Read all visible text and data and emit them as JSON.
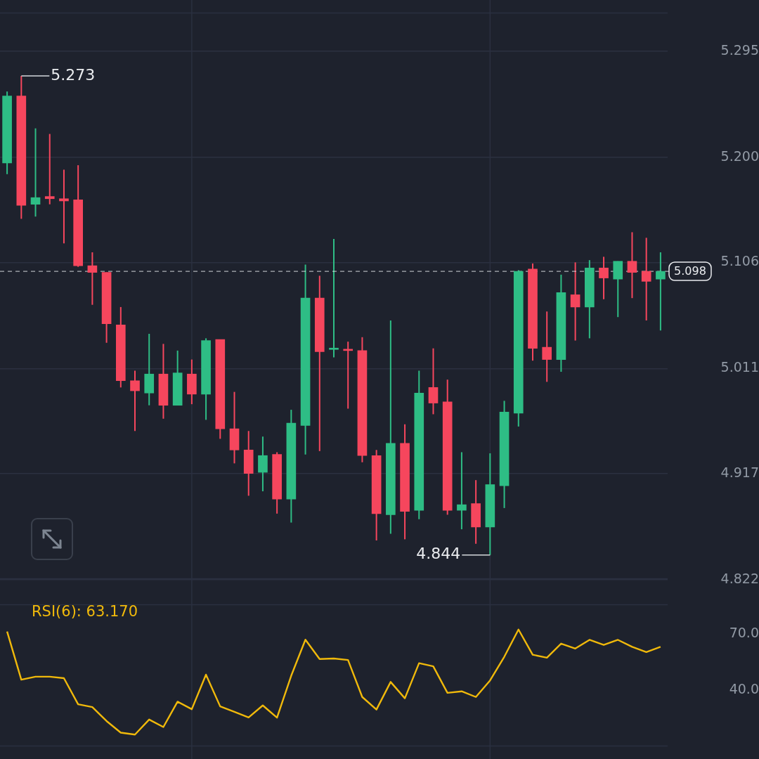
{
  "chart_data": [
    {
      "type": "candlestick",
      "categories": [
        null,
        null,
        null,
        null,
        null,
        null,
        null,
        null,
        null,
        null,
        null,
        null,
        null,
        null,
        null,
        null,
        null,
        null,
        null,
        null,
        null,
        null,
        null,
        null,
        null,
        null,
        null,
        null,
        null,
        null,
        null,
        null,
        null,
        null,
        null,
        null,
        null,
        null,
        null,
        null,
        null,
        null,
        null,
        null,
        null,
        null,
        null
      ],
      "ohlc": [
        [
          5.195,
          5.259,
          5.185,
          5.255
        ],
        [
          5.255,
          5.273,
          5.145,
          5.157
        ],
        [
          5.158,
          5.226,
          5.147,
          5.164
        ],
        [
          5.165,
          5.221,
          5.158,
          5.163
        ],
        [
          5.163,
          5.189,
          5.123,
          5.161
        ],
        [
          5.162,
          5.193,
          5.102,
          5.103
        ],
        [
          5.103,
          5.115,
          5.068,
          5.097
        ],
        [
          5.097,
          5.097,
          5.034,
          5.051
        ],
        [
          5.05,
          5.066,
          4.994,
          5.0
        ],
        [
          5.0,
          5.009,
          4.955,
          4.991
        ],
        [
          4.989,
          5.042,
          4.978,
          5.006
        ],
        [
          5.006,
          5.033,
          4.966,
          4.978
        ],
        [
          4.978,
          5.027,
          4.978,
          5.007
        ],
        [
          5.006,
          5.019,
          4.979,
          4.988
        ],
        [
          4.988,
          5.038,
          4.965,
          5.036
        ],
        [
          5.037,
          5.037,
          4.948,
          4.957
        ],
        [
          4.957,
          4.99,
          4.926,
          4.938
        ],
        [
          4.938,
          4.955,
          4.897,
          4.917
        ],
        [
          4.918,
          4.95,
          4.901,
          4.933
        ],
        [
          4.934,
          4.936,
          4.881,
          4.894
        ],
        [
          4.894,
          4.974,
          4.873,
          4.962
        ],
        [
          4.96,
          5.104,
          4.934,
          5.074
        ],
        [
          5.074,
          5.094,
          4.937,
          5.026
        ],
        [
          5.028,
          5.127,
          5.021,
          5.029
        ],
        [
          5.028,
          5.035,
          4.975,
          5.027
        ],
        [
          5.027,
          5.039,
          4.927,
          4.933
        ],
        [
          4.933,
          4.938,
          4.857,
          4.881
        ],
        [
          4.88,
          5.054,
          4.863,
          4.944
        ],
        [
          4.944,
          4.961,
          4.858,
          4.883
        ],
        [
          4.884,
          5.009,
          4.876,
          4.989
        ],
        [
          4.994,
          5.029,
          4.97,
          4.98
        ],
        [
          4.981,
          5.001,
          4.88,
          4.884
        ],
        [
          4.884,
          4.936,
          4.867,
          4.889
        ],
        [
          4.89,
          4.911,
          4.854,
          4.869
        ],
        [
          4.869,
          4.935,
          4.844,
          4.907
        ],
        [
          4.906,
          4.982,
          4.886,
          4.972
        ],
        [
          4.971,
          5.099,
          4.959,
          5.098
        ],
        [
          5.1,
          5.105,
          5.018,
          5.029
        ],
        [
          5.03,
          5.062,
          4.999,
          5.019
        ],
        [
          5.019,
          5.095,
          5.008,
          5.079
        ],
        [
          5.077,
          5.106,
          5.036,
          5.066
        ],
        [
          5.066,
          5.108,
          5.038,
          5.101
        ],
        [
          5.101,
          5.111,
          5.073,
          5.092
        ],
        [
          5.091,
          5.107,
          5.057,
          5.107
        ],
        [
          5.107,
          5.133,
          5.074,
          5.097
        ],
        [
          5.098,
          5.128,
          5.054,
          5.089
        ],
        [
          5.091,
          5.115,
          5.045,
          5.098
        ]
      ],
      "colors": [
        "#2ebd85",
        "#f6465d",
        "#2ebd85",
        "#f6465d",
        "#f6465d",
        "#f6465d",
        "#f6465d",
        "#f6465d",
        "#f6465d",
        "#f6465d",
        "#2ebd85",
        "#f6465d",
        "#2ebd85",
        "#f6465d",
        "#2ebd85",
        "#f6465d",
        "#f6465d",
        "#f6465d",
        "#2ebd85",
        "#f6465d",
        "#2ebd85",
        "#2ebd85",
        "#f6465d",
        "#2ebd85",
        "#f6465d",
        "#f6465d",
        "#f6465d",
        "#2ebd85",
        "#f6465d",
        "#2ebd85",
        "#f6465d",
        "#f6465d",
        "#2ebd85",
        "#f6465d",
        "#2ebd85",
        "#2ebd85",
        "#2ebd85",
        "#f6465d",
        "#f6465d",
        "#2ebd85",
        "#f6465d",
        "#2ebd85",
        "#f6465d",
        "#2ebd85",
        "#f6465d",
        "#f6465d",
        "#2ebd85"
      ],
      "ylim": [
        4.822,
        5.33
      ],
      "yticks": [
        5.295,
        {
          "value": 5.2,
          "label": "5.200"
        },
        5.106,
        5.011,
        4.917,
        4.822
      ],
      "grid": "y",
      "tick_labels": "y",
      "annotations": [
        "5.273",
        "4.844"
      ],
      "ref_lines": [
        {
          "axis": "y",
          "value": 5.098,
          "label": "5.098",
          "color": "#eaecef",
          "line_style": "dashed"
        }
      ]
    },
    {
      "type": "line",
      "title": "RSI(6): 63.170",
      "categories": [
        null,
        null,
        null,
        null,
        null,
        null,
        null,
        null,
        null,
        null,
        null,
        null,
        null,
        null,
        null,
        null,
        null,
        null,
        null,
        null,
        null,
        null,
        null,
        null,
        null,
        null,
        null,
        null,
        null,
        null,
        null,
        null,
        null,
        null,
        null,
        null,
        null,
        null,
        null,
        null,
        null,
        null,
        null,
        null,
        null,
        null,
        null
      ],
      "values": [
        71.3,
        45.7,
        47.3,
        47.3,
        46.5,
        32.6,
        31.1,
        23.7,
        17.5,
        16.5,
        24.5,
        20.5,
        34.0,
        30.0,
        48.4,
        31.5,
        28.6,
        25.6,
        32.0,
        25.5,
        47.8,
        67.0,
        56.7,
        57.0,
        56.2,
        36.5,
        29.8,
        44.5,
        35.8,
        54.5,
        52.8,
        38.7,
        39.5,
        36.5,
        45.3,
        57.9,
        72.4,
        59.0,
        57.4,
        64.9,
        62.3,
        66.9,
        64.2,
        66.9,
        63.2,
        60.4,
        63.2
      ],
      "color": "#f0b90b",
      "ylim": [
        10,
        86
      ],
      "yticks": [
        {
          "value": 70,
          "label": "70.0"
        },
        {
          "value": 40,
          "label": "40.0"
        }
      ],
      "tick_labels": "y"
    }
  ]
}
